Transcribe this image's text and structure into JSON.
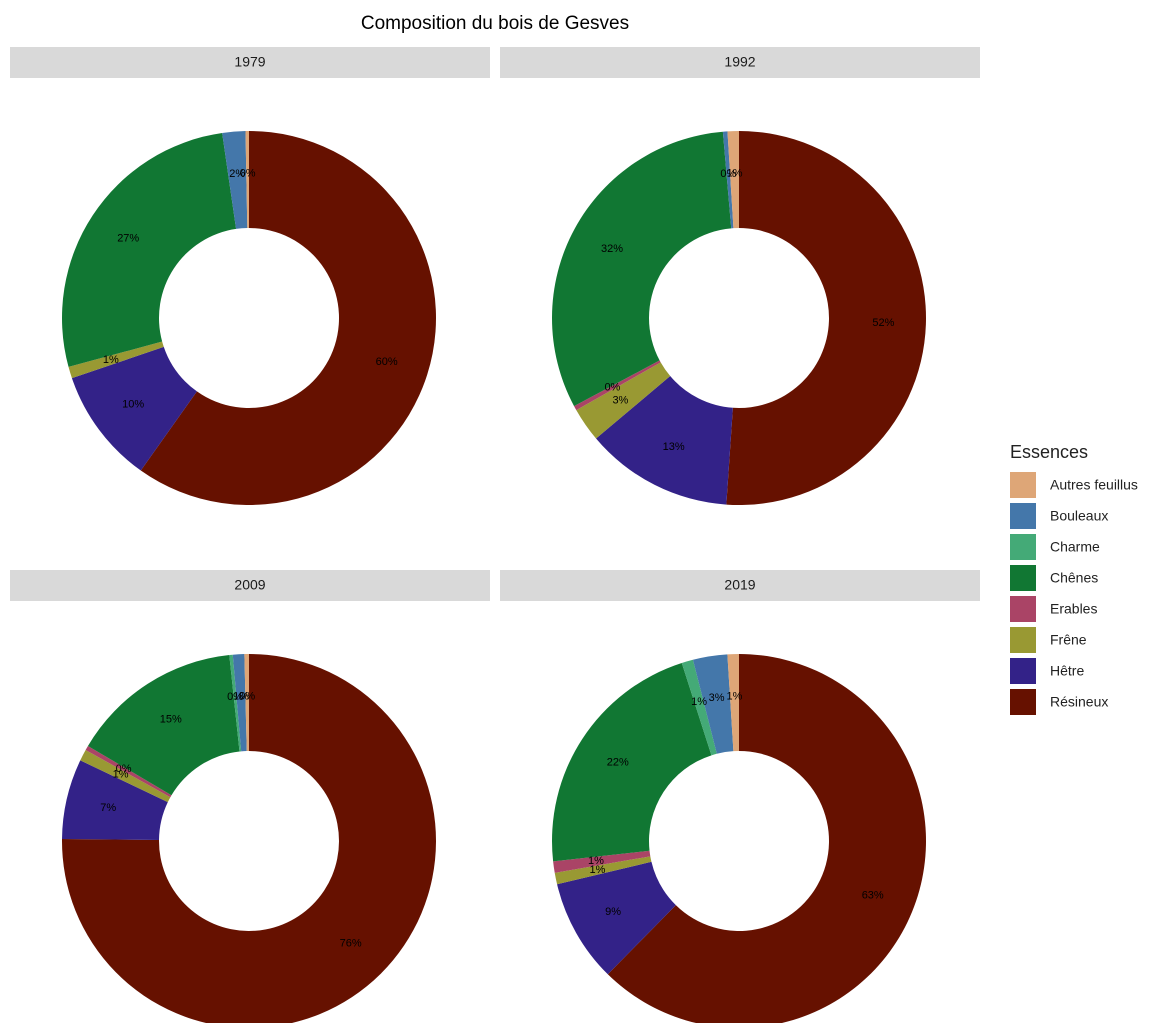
{
  "title": "Composition du bois de Gesves",
  "legend": {
    "title": "Essences",
    "labels": [
      "Autres feuillus",
      "Bouleaux",
      "Charme",
      "Chênes",
      "Erables",
      "Frêne",
      "Hêtre",
      "Résineux"
    ],
    "colors": [
      "#dea677",
      "#4477aa",
      "#44aa77",
      "#117733",
      "#aa4466",
      "#999933",
      "#332288",
      "#661100"
    ]
  },
  "chart_data": [
    {
      "type": "donut",
      "title": "1979",
      "categories": [
        "Autres feuillus",
        "Bouleaux",
        "Chênes",
        "Frêne",
        "Hêtre",
        "Résineux"
      ],
      "values": [
        0.3,
        2,
        27,
        1,
        10,
        60
      ],
      "value_labels": [
        "0%",
        "2%",
        "27%",
        "1%",
        "10%",
        "60%"
      ]
    },
    {
      "type": "donut",
      "title": "1992",
      "categories": [
        "Autres feuillus",
        "Bouleaux",
        "Chênes",
        "Erables",
        "Frêne",
        "Hêtre",
        "Résineux"
      ],
      "values": [
        1,
        0.4,
        32,
        0.4,
        3,
        13,
        52
      ],
      "value_labels": [
        "1%",
        "0%",
        "32%",
        "0%",
        "3%",
        "13%",
        "52%"
      ]
    },
    {
      "type": "donut",
      "title": "2009",
      "categories": [
        "Autres feuillus",
        "Bouleaux",
        "Charme",
        "Chênes",
        "Erables",
        "Frêne",
        "Hêtre",
        "Résineux"
      ],
      "values": [
        0.4,
        1,
        0.3,
        15,
        0.4,
        1,
        7,
        76
      ],
      "value_labels": [
        "0%",
        "1%",
        "0%",
        "15%",
        "0%",
        "1%",
        "7%",
        "76%"
      ]
    },
    {
      "type": "donut",
      "title": "2019",
      "categories": [
        "Autres feuillus",
        "Bouleaux",
        "Charme",
        "Chênes",
        "Erables",
        "Frêne",
        "Hêtre",
        "Résineux"
      ],
      "values": [
        1,
        3,
        1,
        22,
        1,
        1,
        9,
        63
      ],
      "value_labels": [
        "1%",
        "3%",
        "1%",
        "22%",
        "1%",
        "1%",
        "9%",
        "63%"
      ]
    }
  ]
}
